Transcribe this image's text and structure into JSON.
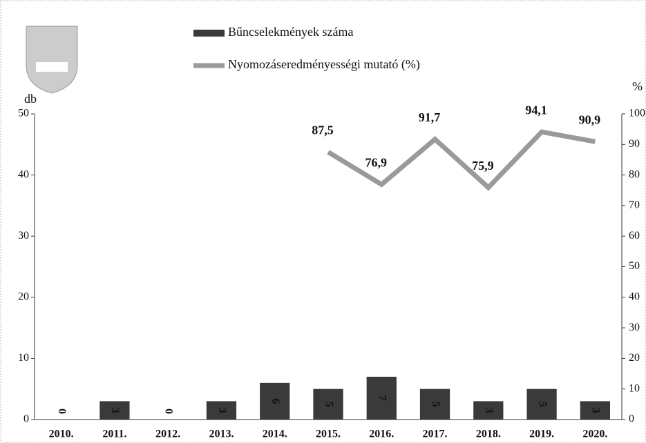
{
  "chart_data": {
    "type": "bar",
    "categories": [
      "2010.",
      "2011.",
      "2012.",
      "2013.",
      "2014.",
      "2015.",
      "2016.",
      "2017.",
      "2018.",
      "2019.",
      "2020."
    ],
    "series": [
      {
        "name": "Bűncselekmények száma",
        "type": "bar",
        "color": "#3a3a3a",
        "values": [
          0,
          3,
          0,
          3,
          6,
          5,
          7,
          5,
          3,
          5,
          3
        ]
      },
      {
        "name": "Nyomozáseredményességi mutató (%)",
        "type": "line",
        "axis": "y2",
        "color": "#9a9a9a",
        "values": [
          null,
          null,
          null,
          null,
          null,
          87.5,
          76.9,
          91.7,
          75.9,
          94.1,
          90.9
        ],
        "value_labels": [
          null,
          null,
          null,
          null,
          null,
          "87,5",
          "76,9",
          "91,7",
          "75,9",
          "94,1",
          "90,9"
        ]
      }
    ],
    "ylabel": "db",
    "y2label": "%",
    "ylim": [
      0,
      50
    ],
    "yticks": [
      0,
      10,
      20,
      30,
      40,
      50
    ],
    "y2lim": [
      0,
      100
    ],
    "y2ticks": [
      0,
      10,
      20,
      30,
      40,
      50,
      60,
      70,
      80,
      90,
      100
    ]
  }
}
